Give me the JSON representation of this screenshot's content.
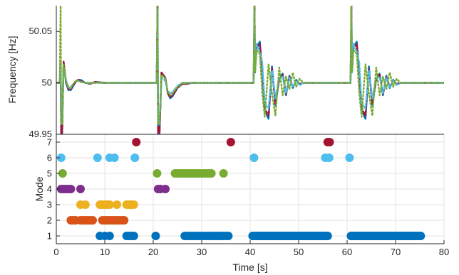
{
  "chart_data": [
    {
      "type": "line",
      "title": "",
      "xlabel": "",
      "ylabel": "Frequency [Hz]",
      "xlim": [
        0,
        80
      ],
      "ylim": [
        49.95,
        50.075
      ],
      "yticks": [
        49.95,
        50,
        50.05
      ],
      "ytick_labels": [
        "49.95",
        "50",
        "50.05"
      ],
      "grid": false,
      "disturbance_times_s": [
        1,
        21,
        41,
        61
      ],
      "series": [
        {
          "color": "#0072bd",
          "style": "solid",
          "x": [
            0,
            0.7,
            0.9,
            1.0,
            1.2,
            1.5,
            2,
            2.5,
            3,
            3.5,
            4,
            4.5,
            5,
            6,
            7,
            8,
            10,
            14,
            20,
            20.7,
            20.9,
            21.0,
            21.3,
            21.7,
            22.5,
            23,
            23.5,
            24,
            25,
            26,
            27,
            28,
            30,
            34,
            40,
            40.7,
            40.9,
            41.0,
            41.3,
            42,
            42.5,
            43,
            43.8,
            44.5,
            45.2,
            46,
            46.7,
            47.4,
            48.1,
            48.8,
            49.5,
            50.2,
            51,
            53,
            56,
            60,
            60.7,
            60.9,
            61.0,
            61.3,
            62,
            62.5,
            63,
            63.8,
            64.5,
            65.2,
            66,
            66.7,
            67.4,
            68.1,
            68.8,
            69.5,
            70.2,
            71,
            73,
            76,
            80
          ],
          "y": [
            50,
            50,
            50.02,
            49.95,
            49.95,
            50.02,
            50,
            49.993,
            49.993,
            49.997,
            50.001,
            50.003,
            50.003,
            50,
            49.999,
            50.001,
            50,
            50,
            50,
            50,
            50.08,
            49.95,
            49.95,
            50.01,
            50.005,
            49.99,
            49.985,
            49.987,
            49.995,
            49.999,
            49.999,
            50,
            50,
            50,
            50,
            50,
            50.08,
            50.01,
            50.035,
            50.04,
            50.01,
            49.973,
            49.965,
            50.016,
            49.978,
            50.004,
            50.009,
            49.988,
            50.007,
            49.995,
            50.003,
            49.998,
            50,
            50,
            50,
            50,
            50,
            50.08,
            50.01,
            50.035,
            50.04,
            50.01,
            49.973,
            49.965,
            50.016,
            49.978,
            50.004,
            50.009,
            49.988,
            50.007,
            49.995,
            50.003,
            49.998,
            50,
            50,
            50,
            50
          ]
        },
        {
          "color": "#a2142f",
          "style": "dashdot",
          "x": [
            0,
            0.7,
            0.9,
            1.0,
            1.2,
            1.5,
            2,
            2.5,
            3,
            3.5,
            4,
            4.5,
            5,
            6,
            7,
            8,
            10,
            14,
            20,
            20.7,
            20.9,
            21.0,
            21.3,
            21.7,
            22.5,
            23,
            23.5,
            24,
            25,
            26,
            27,
            28,
            30,
            34,
            40,
            40.7,
            40.9,
            41.0,
            41.3,
            42,
            42.5,
            43,
            43.8,
            44.5,
            45.2,
            46,
            46.7,
            47.4,
            48.1,
            48.8,
            49.5,
            50.2,
            51,
            53,
            56,
            60,
            60.7,
            60.9,
            61.0,
            61.3,
            62,
            62.5,
            63,
            63.8,
            64.5,
            65.2,
            66,
            66.7,
            67.4,
            68.1,
            68.8,
            69.5,
            70.2,
            71,
            73,
            76,
            80
          ],
          "y": [
            50,
            50,
            50.02,
            49.95,
            49.95,
            50.021,
            50.001,
            49.994,
            49.994,
            49.998,
            50.001,
            50.003,
            50.002,
            50,
            49.999,
            50.001,
            50,
            50,
            50,
            50,
            50.08,
            49.95,
            49.95,
            50.01,
            50.005,
            49.99,
            49.986,
            49.988,
            49.995,
            49.999,
            49.999,
            50,
            50,
            50,
            50,
            50,
            50.08,
            50.01,
            50.033,
            50.038,
            50.012,
            49.976,
            49.968,
            50.014,
            49.98,
            50.003,
            50.008,
            49.989,
            50.006,
            49.996,
            50.002,
            49.999,
            50,
            50,
            50,
            50,
            50,
            50.08,
            50.01,
            50.033,
            50.038,
            50.012,
            49.976,
            49.968,
            50.014,
            49.98,
            50.003,
            50.008,
            49.989,
            50.006,
            49.996,
            50.002,
            49.999,
            50,
            50,
            50,
            50
          ]
        },
        {
          "color": "#4dbeee",
          "style": "dashed",
          "x": [
            0,
            0.7,
            0.9,
            1.0,
            1.2,
            1.5,
            2,
            2.5,
            3,
            3.5,
            4,
            4.5,
            5,
            6,
            7,
            8,
            10,
            14,
            20,
            20.7,
            20.9,
            21.0,
            21.3,
            21.7,
            22.5,
            23,
            23.5,
            24,
            25,
            26,
            27,
            28,
            30,
            34,
            40,
            40.7,
            40.9,
            41.0,
            41.3,
            42,
            42.5,
            43,
            43.8,
            44.5,
            45.2,
            46,
            46.7,
            47.4,
            48.1,
            48.8,
            49.5,
            50.2,
            51,
            53,
            56,
            60,
            60.7,
            60.9,
            61.0,
            61.3,
            62,
            62.5,
            63,
            63.8,
            64.5,
            65.2,
            66,
            66.7,
            67.4,
            68.1,
            68.8,
            69.5,
            70.2,
            71,
            73,
            76,
            80
          ],
          "y": [
            50,
            50,
            50.02,
            49.96,
            49.96,
            50.015,
            50.003,
            49.995,
            49.996,
            49.999,
            50.002,
            50.002,
            50.001,
            50,
            50,
            50,
            50,
            50,
            50,
            50,
            50.07,
            49.96,
            49.96,
            50.005,
            50.002,
            49.992,
            49.99,
            49.991,
            49.997,
            50,
            50,
            50,
            50,
            50,
            50,
            50,
            50.07,
            50.01,
            50.038,
            50.03,
            50.02,
            49.98,
            49.975,
            50.012,
            49.985,
            50.005,
            50.006,
            49.99,
            50.005,
            49.996,
            50.002,
            49.998,
            50,
            50,
            50,
            50,
            50,
            50.07,
            50.01,
            50.038,
            50.03,
            50.02,
            49.98,
            49.975,
            50.012,
            49.985,
            50.005,
            50.006,
            49.99,
            50.005,
            49.996,
            50.002,
            49.998,
            50,
            50,
            50,
            50
          ]
        },
        {
          "color": "#77ac30",
          "style": "dotted",
          "x": [
            0,
            0.7,
            0.9,
            1.0,
            1.2,
            1.5,
            2,
            2.5,
            3,
            3.5,
            4,
            4.5,
            5,
            6,
            7,
            8,
            10,
            14,
            20,
            20.7,
            20.9,
            21.0,
            21.3,
            21.7,
            22.5,
            23,
            23.5,
            24,
            25,
            26,
            27,
            28,
            30,
            34,
            40,
            40.7,
            40.9,
            41.0,
            41.3,
            42,
            42.5,
            43,
            43.8,
            44.5,
            45.2,
            46,
            46.7,
            47.4,
            48.1,
            48.8,
            49.5,
            50.2,
            51,
            53,
            56,
            60,
            60.7,
            60.9,
            61.0,
            61.3,
            62,
            62.5,
            63,
            63.8,
            64.5,
            65.2,
            66,
            66.7,
            67.4,
            68.1,
            68.8,
            69.5,
            70.2,
            71,
            73,
            76,
            80
          ],
          "y": [
            50,
            50,
            50.08,
            49.96,
            49.96,
            50.018,
            50.002,
            49.996,
            49.995,
            49.999,
            50.002,
            50.002,
            50.001,
            50,
            50,
            50,
            50,
            50,
            50,
            50,
            50.08,
            49.96,
            49.96,
            50.008,
            50.004,
            49.991,
            49.988,
            49.99,
            49.996,
            50,
            50,
            50,
            50,
            50,
            50,
            50,
            50.08,
            50.01,
            50.032,
            50.028,
            49.99,
            49.967,
            50.018,
            49.99,
            49.968,
            50.015,
            49.988,
            50.006,
            49.994,
            50.01,
            49.996,
            50.004,
            50,
            50,
            50,
            50,
            50,
            50.08,
            50.01,
            50.032,
            50.028,
            49.99,
            49.967,
            50.018,
            49.99,
            49.968,
            50.015,
            49.988,
            50.006,
            49.994,
            50.01,
            49.996,
            50.004,
            50,
            50,
            50,
            50
          ]
        }
      ]
    },
    {
      "type": "scatter",
      "title": "",
      "xlabel": "Time [s]",
      "ylabel": "Mode",
      "xlim": [
        0,
        80
      ],
      "ylim": [
        0.5,
        7.5
      ],
      "xticks": [
        0,
        10,
        20,
        30,
        40,
        50,
        60,
        70,
        80
      ],
      "xtick_labels": [
        "0",
        "10",
        "20",
        "30",
        "40",
        "50",
        "60",
        "70",
        "80"
      ],
      "yticks": [
        1,
        2,
        3,
        4,
        5,
        6,
        7
      ],
      "ytick_labels": [
        "1",
        "2",
        "3",
        "4",
        "5",
        "6",
        "7"
      ],
      "grid": true,
      "series": [
        {
          "mode": 1,
          "color": "#0072bd",
          "points": [
            9,
            10,
            11,
            14.5,
            15,
            15.5,
            16,
            20.5,
            26.5,
            27,
            27.5,
            28,
            28.5,
            29,
            29.5,
            30,
            30.5,
            31,
            31.5,
            32,
            32.5,
            33,
            33.5,
            34,
            34.5,
            35,
            35.5
          ],
          "bands": [
            [
              40.5,
              56
            ],
            [
              60.8,
              75.2
            ]
          ]
        },
        {
          "mode": 2,
          "color": "#d95319",
          "points": [
            3,
            3.5,
            4,
            5,
            5.5,
            6,
            6.5,
            7,
            7.5,
            9.5,
            10,
            10.5,
            11,
            11.5,
            12,
            12.5,
            13,
            13.5,
            14
          ]
        },
        {
          "mode": 3,
          "color": "#edb120",
          "points": [
            5,
            6,
            9,
            9.5,
            10,
            10.5,
            11,
            12.5,
            14.5,
            15,
            15.5,
            16
          ]
        },
        {
          "mode": 4,
          "color": "#7e2f8e",
          "points": [
            1,
            1.5,
            2,
            2.5,
            3,
            5,
            21,
            21.5,
            22.5
          ]
        },
        {
          "mode": 5,
          "color": "#77ac30",
          "points": [
            1.3,
            20.8,
            24.5,
            25,
            25.5,
            26,
            26.5,
            27,
            27.5,
            28,
            28.5,
            29,
            29.5,
            30,
            30.5,
            31,
            31.5,
            32,
            34.5
          ]
        },
        {
          "mode": 6,
          "color": "#4dbeee",
          "points": [
            1,
            8.5,
            11,
            12,
            16.2,
            40.8,
            55.5,
            56.3,
            60.5
          ]
        },
        {
          "mode": 7,
          "color": "#a2142f",
          "points": [
            16.5,
            36,
            56,
            56.4
          ]
        }
      ]
    }
  ]
}
